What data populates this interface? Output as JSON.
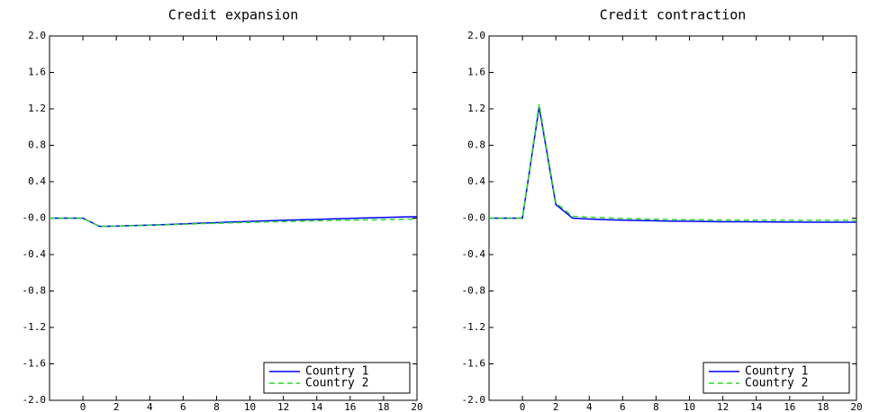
{
  "chart_data": [
    {
      "type": "line",
      "title": "Credit expansion",
      "x": [
        -2,
        -1,
        0,
        1,
        2,
        3,
        4,
        5,
        6,
        7,
        8,
        9,
        10,
        11,
        12,
        13,
        14,
        15,
        16,
        17,
        18,
        19,
        20
      ],
      "series": [
        {
          "name": "Country 1",
          "color": "#0000ff",
          "linestyle": "solid",
          "values": [
            0,
            0,
            0,
            -0.09,
            -0.088,
            -0.082,
            -0.076,
            -0.07,
            -0.063,
            -0.056,
            -0.049,
            -0.042,
            -0.036,
            -0.03,
            -0.024,
            -0.018,
            -0.013,
            -0.008,
            -0.003,
            0.002,
            0.007,
            0.012,
            0.016
          ]
        },
        {
          "name": "Country 2",
          "color": "#22dd22",
          "linestyle": "dashed",
          "values": [
            0,
            0,
            0,
            -0.09,
            -0.088,
            -0.083,
            -0.078,
            -0.073,
            -0.067,
            -0.061,
            -0.056,
            -0.051,
            -0.046,
            -0.041,
            -0.037,
            -0.033,
            -0.029,
            -0.025,
            -0.022,
            -0.019,
            -0.016,
            -0.013,
            -0.01
          ]
        }
      ],
      "xlim": [
        -2,
        20
      ],
      "xticks": [
        0,
        2,
        4,
        6,
        8,
        10,
        12,
        14,
        16,
        18,
        20
      ],
      "ylim": [
        -2,
        2
      ],
      "yticks": [
        {
          "value": -2,
          "label": "-2.0"
        },
        -1.6,
        -1.2,
        -0.8,
        -0.4,
        {
          "value": 0,
          "label": "-0.0"
        },
        0.4,
        0.8,
        1.2,
        1.6,
        {
          "value": 2,
          "label": "2.0"
        }
      ],
      "legend": "lower right"
    },
    {
      "type": "line",
      "title": "Credit contraction",
      "x": [
        -2,
        -1,
        0,
        1,
        2,
        3,
        4,
        5,
        6,
        7,
        8,
        9,
        10,
        11,
        12,
        13,
        14,
        15,
        16,
        17,
        18,
        19,
        20
      ],
      "series": [
        {
          "name": "Country 1",
          "color": "#0000ff",
          "linestyle": "solid",
          "values": [
            0,
            0,
            0,
            1.22,
            0.15,
            0.0,
            -0.01,
            -0.017,
            -0.022,
            -0.026,
            -0.03,
            -0.033,
            -0.035,
            -0.037,
            -0.039,
            -0.04,
            -0.041,
            -0.042,
            -0.043,
            -0.044,
            -0.044,
            -0.045,
            -0.045
          ]
        },
        {
          "name": "Country 2",
          "color": "#22dd22",
          "linestyle": "dashed",
          "values": [
            0,
            0,
            0,
            1.25,
            0.17,
            0.02,
            0.01,
            0.003,
            -0.003,
            -0.008,
            -0.012,
            -0.015,
            -0.017,
            -0.019,
            -0.02,
            -0.021,
            -0.022,
            -0.022,
            -0.023,
            -0.023,
            -0.023,
            -0.023,
            -0.023
          ]
        }
      ],
      "xlim": [
        -2,
        20
      ],
      "xticks": [
        0,
        2,
        4,
        6,
        8,
        10,
        12,
        14,
        16,
        18,
        20
      ],
      "ylim": [
        -2,
        2
      ],
      "yticks": [
        {
          "value": -2,
          "label": "-2.0"
        },
        -1.6,
        -1.2,
        -0.8,
        -0.4,
        {
          "value": 0,
          "label": "-0.0"
        },
        0.4,
        0.8,
        1.2,
        1.6,
        {
          "value": 2,
          "label": "2.0"
        }
      ],
      "legend": "lower right"
    }
  ]
}
